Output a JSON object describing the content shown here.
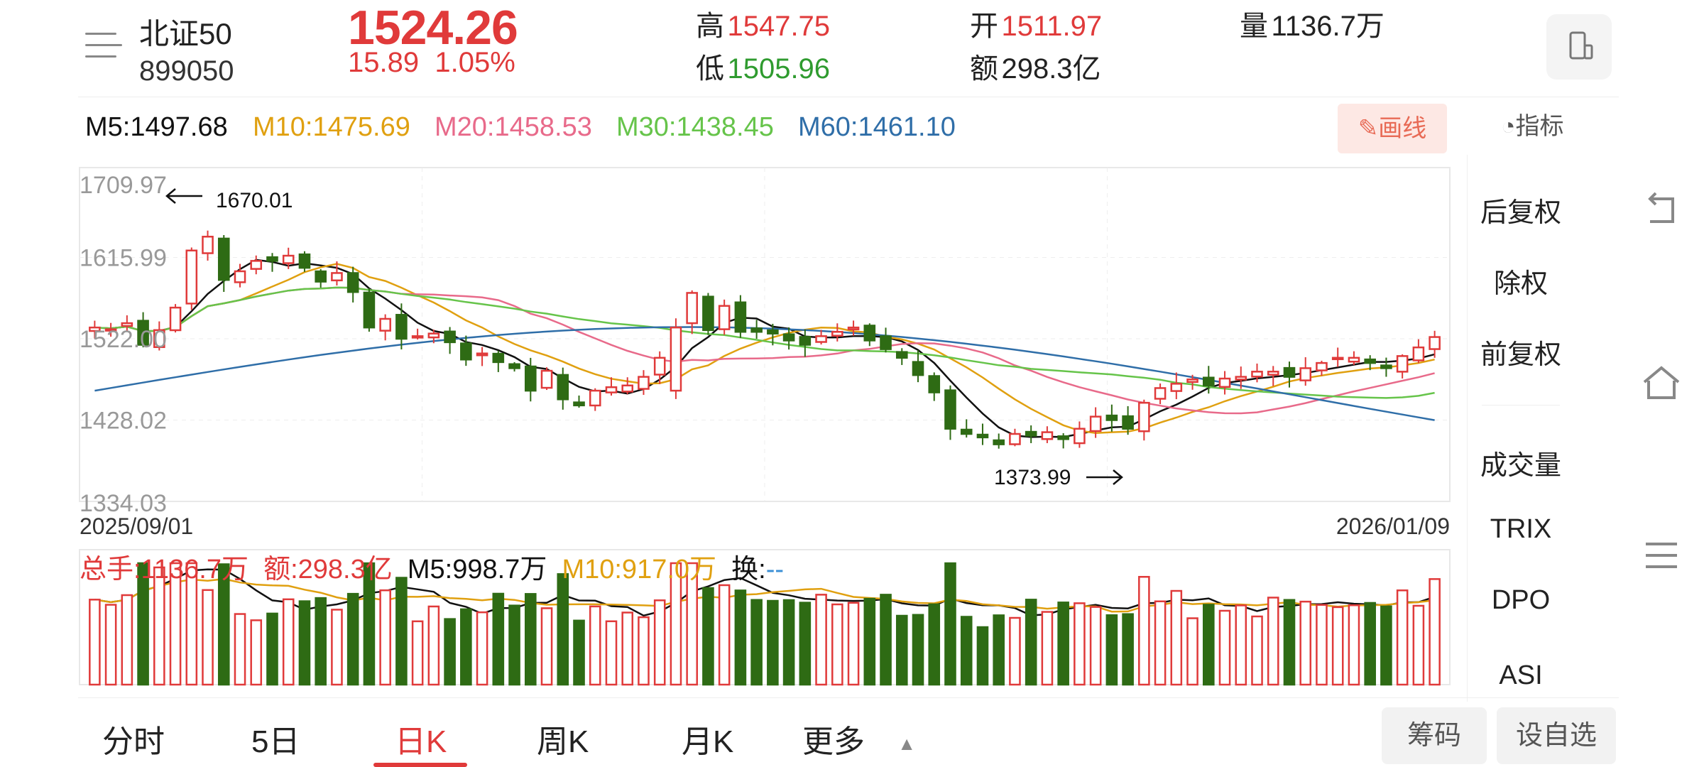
{
  "header": {
    "name": "北证50",
    "code": "899050",
    "price": "1524.26",
    "change": "15.89",
    "change_pct": "1.05%",
    "high_label": "高",
    "high_value": "1547.75",
    "low_label": "低",
    "low_value": "1505.96",
    "open_label": "开",
    "open_value": "1511.97",
    "amount_label": "额",
    "amount_value": "298.3亿",
    "volume_label": "量",
    "volume_value": "1136.7万"
  },
  "ma_row": {
    "m5": "M5:1497.68",
    "m10": "M10:1475.69",
    "m20": "M20:1458.53",
    "m30": "M30:1438.45",
    "m60": "M60:1461.10",
    "draw_label": "画线",
    "indicator_label": "指标"
  },
  "colors": {
    "up": "#e03a3a",
    "down": "#2e6b14",
    "m5": "#111111",
    "m10": "#e0a010",
    "m20": "#e86a8a",
    "m30": "#66c44a",
    "m60": "#2f6ea8"
  },
  "vol_row": {
    "total": "总手:1136.7万",
    "amount": "额:298.3亿",
    "m5": "M5:998.7万",
    "m10": "M10:917.0万",
    "turnover_label": "换:",
    "turnover_value": "--"
  },
  "right_panel": {
    "items": [
      "后复权",
      "除权",
      "前复权",
      "成交量",
      "TRIX",
      "DPO",
      "ASI"
    ]
  },
  "tabs": [
    "分时",
    "5日",
    "日K",
    "周K",
    "月K",
    "更多"
  ],
  "buttons": {
    "chips": "筹码",
    "add_watch": "设自选"
  },
  "chart_data": {
    "type": "candlestick",
    "y_ticks": [
      "1709.97",
      "1615.99",
      "1522.00",
      "1428.02",
      "1334.03"
    ],
    "ylim": [
      1334.03,
      1709.97
    ],
    "x_start": "2025/09/01",
    "x_end": "2026/01/09",
    "annotations": [
      {
        "text": "1670.01",
        "value": 1670.01
      },
      {
        "text": "1373.99",
        "value": 1373.99
      }
    ],
    "closes": [
      1535,
      1533,
      1540,
      1515,
      1532,
      1558,
      1624,
      1640,
      1590,
      1600,
      1612,
      1612,
      1618,
      1604,
      1588,
      1598,
      1576,
      1535,
      1545,
      1522,
      1525,
      1528,
      1518,
      1498,
      1505,
      1495,
      1488,
      1462,
      1485,
      1452,
      1445,
      1462,
      1466,
      1468,
      1478,
      1500,
      1535,
      1575,
      1532,
      1560,
      1530,
      1530,
      1528,
      1520,
      1515,
      1525,
      1530,
      1535,
      1520,
      1510,
      1500,
      1480,
      1460,
      1418,
      1412,
      1408,
      1400,
      1412,
      1410,
      1414,
      1406,
      1418,
      1432,
      1428,
      1418,
      1448,
      1465,
      1470,
      1475,
      1468,
      1476,
      1478,
      1484,
      1484,
      1478,
      1488,
      1494,
      1500,
      1500,
      1494,
      1488,
      1502,
      1512,
      1524
    ]
  }
}
